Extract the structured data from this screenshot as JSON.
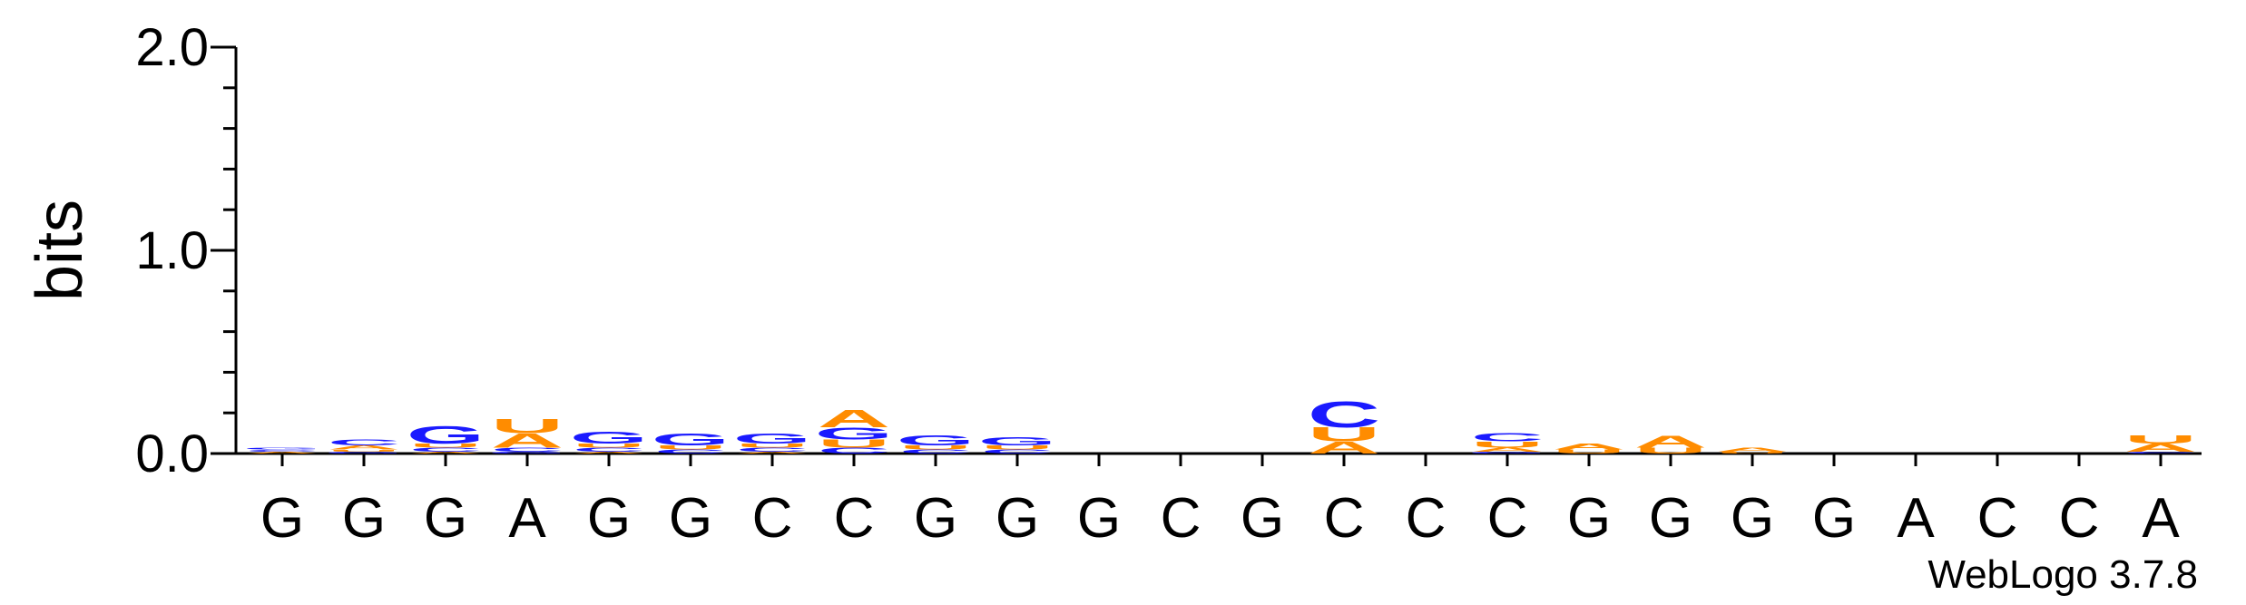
{
  "chart_data": {
    "type": "logo",
    "ylabel": "bits",
    "credit": "WebLogo 3.7.8",
    "ylim": [
      0,
      2
    ],
    "yticks": [
      {
        "value": 0,
        "label": "0.0"
      },
      {
        "value": 1,
        "label": "1.0"
      },
      {
        "value": 2,
        "label": "2.0"
      }
    ],
    "yminorticks": [
      0.2,
      0.4,
      0.6,
      0.8,
      1.2,
      1.4,
      1.6,
      1.8
    ],
    "categories": [
      "G",
      "G",
      "G",
      "A",
      "G",
      "G",
      "C",
      "C",
      "G",
      "G",
      "G",
      "C",
      "G",
      "C",
      "C",
      "C",
      "G",
      "G",
      "G",
      "G",
      "A",
      "C",
      "C",
      "A"
    ],
    "series": [
      {
        "name": "A",
        "color": "#ff8c00",
        "values": [
          0.01,
          0.02,
          0.01,
          0.07,
          0.01,
          0,
          0.01,
          0.09,
          0,
          0,
          0,
          0,
          0,
          0.06,
          0,
          0.02,
          0.03,
          0.06,
          0.02,
          0,
          0,
          0,
          0,
          0.04
        ]
      },
      {
        "name": "C",
        "color": "#1a1aff",
        "values": [
          0.01,
          0.03,
          0.02,
          0.02,
          0.02,
          0.02,
          0.02,
          0.03,
          0.02,
          0.02,
          0,
          0,
          0,
          0.13,
          0,
          0.04,
          0,
          0,
          0,
          0,
          0,
          0,
          0,
          0.01
        ]
      },
      {
        "name": "G",
        "color": "#1a1aff",
        "values": [
          0.01,
          0.01,
          0.09,
          0.01,
          0.06,
          0.06,
          0.05,
          0.06,
          0.05,
          0.04,
          0,
          0,
          0,
          0,
          0,
          0.01,
          0,
          0,
          0,
          0,
          0,
          0,
          0,
          0
        ]
      },
      {
        "name": "U",
        "color": "#ff8c00",
        "values": [
          0,
          0.01,
          0.02,
          0.07,
          0.02,
          0.02,
          0.02,
          0.04,
          0.02,
          0.02,
          0,
          0,
          0,
          0.07,
          0,
          0.03,
          0.02,
          0.03,
          0.01,
          0,
          0,
          0,
          0,
          0.04
        ]
      }
    ]
  }
}
